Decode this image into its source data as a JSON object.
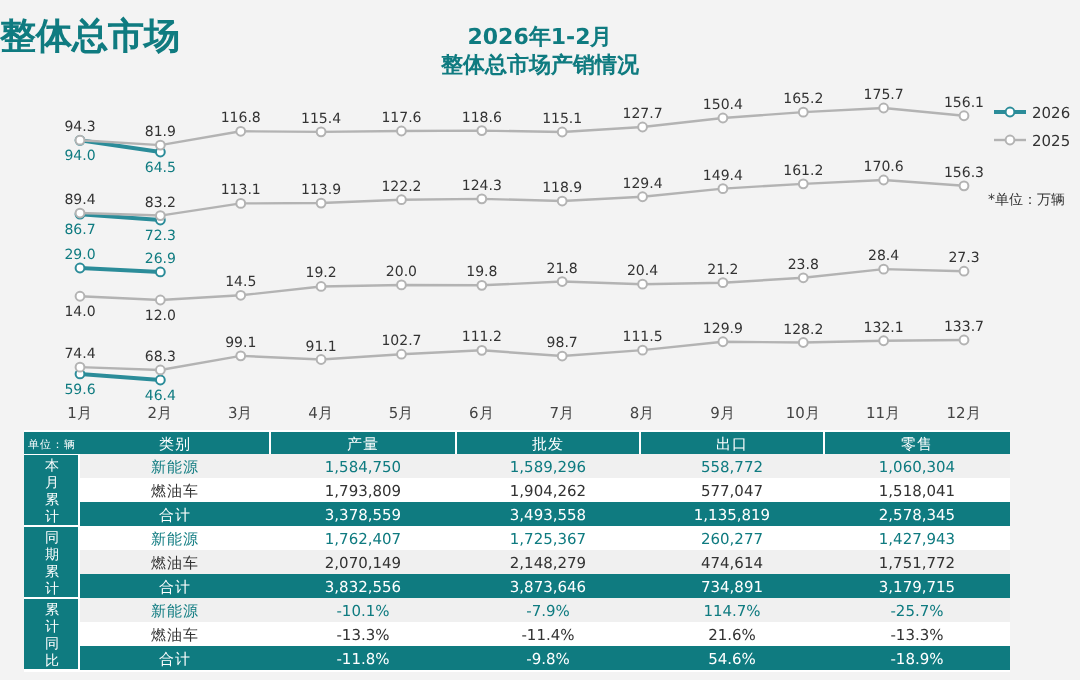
{
  "chart_data": [
    {
      "type": "other",
      "title": "整体总市场"
    },
    {
      "type": "line",
      "title": "2026年1-2月",
      "subtitle": "整体总市场产销情况",
      "tick_labels": false,
      "marker": "circle",
      "legend": "right",
      "series": [
        {
          "name": "2026",
          "color": "#2b8c99",
          "values": [
            94.0,
            64.5,
            null,
            null,
            null,
            null,
            null,
            null,
            null,
            null,
            null,
            null
          ],
          "value_labels": [
            "94.0",
            "64.5",
            null,
            null,
            null,
            null,
            null,
            null,
            null,
            null,
            null,
            null
          ]
        },
        {
          "name": "2025",
          "color": "#b3b3b3",
          "values": [
            94.3,
            81.9,
            116.8,
            115.4,
            117.6,
            118.6,
            115.1,
            127.7,
            150.4,
            165.2,
            175.7,
            156.1
          ],
          "value_labels": [
            "94.3",
            "81.9",
            "116.8",
            "115.4",
            "117.6",
            "118.6",
            "115.1",
            "127.7",
            "150.4",
            "165.2",
            "175.7",
            "156.1"
          ]
        }
      ]
    },
    {
      "type": "line",
      "tick_labels": false,
      "marker": "circle",
      "annotations": [
        "*单位：万辆"
      ],
      "series": [
        {
          "color": "#2b8c99",
          "values": [
            86.7,
            72.3,
            null,
            null,
            null,
            null,
            null,
            null,
            null,
            null,
            null,
            null
          ],
          "value_labels": [
            "86.7",
            "72.3",
            null,
            null,
            null,
            null,
            null,
            null,
            null,
            null,
            null,
            null
          ]
        },
        {
          "color": "#b3b3b3",
          "values": [
            89.4,
            83.2,
            113.1,
            113.9,
            122.2,
            124.3,
            118.9,
            129.4,
            149.4,
            161.2,
            170.6,
            156.3
          ],
          "value_labels": [
            "89.4",
            "83.2",
            "113.1",
            "113.9",
            "122.2",
            "124.3",
            "118.9",
            "129.4",
            "149.4",
            "161.2",
            "170.6",
            "156.3"
          ]
        }
      ]
    },
    {
      "type": "line",
      "tick_labels": false,
      "marker": "circle",
      "series": [
        {
          "color": "#2b8c99",
          "values": [
            29.0,
            26.9,
            null,
            null,
            null,
            null,
            null,
            null,
            null,
            null,
            null,
            null
          ],
          "value_labels": [
            "29.0",
            "26.9",
            null,
            null,
            null,
            null,
            null,
            null,
            null,
            null,
            null,
            null
          ]
        },
        {
          "color": "#b3b3b3",
          "values": [
            14.0,
            12.0,
            14.5,
            19.2,
            20.0,
            19.8,
            21.8,
            20.4,
            21.2,
            23.8,
            28.4,
            27.3
          ],
          "value_labels": [
            "14.0",
            "12.0",
            "14.5",
            "19.2",
            "20.0",
            "19.8",
            "21.8",
            "20.4",
            "21.2",
            "23.8",
            "28.4",
            "27.3"
          ]
        }
      ]
    },
    {
      "type": "line",
      "categories": [
        "1月",
        "2月",
        "3月",
        "4月",
        "5月",
        "6月",
        "7月",
        "8月",
        "9月",
        "10月",
        "11月",
        "12月"
      ],
      "tick_labels": "x",
      "marker": "circle",
      "series": [
        {
          "color": "#2b8c99",
          "values": [
            59.6,
            46.4,
            null,
            null,
            null,
            null,
            null,
            null,
            null,
            null,
            null,
            null
          ],
          "value_labels": [
            "59.6",
            "46.4",
            null,
            null,
            null,
            null,
            null,
            null,
            null,
            null,
            null,
            null
          ]
        },
        {
          "color": "#b3b3b3",
          "values": [
            74.4,
            68.3,
            99.1,
            91.1,
            102.7,
            111.2,
            98.7,
            111.5,
            129.9,
            128.2,
            132.1,
            133.7
          ],
          "value_labels": [
            "74.4",
            "68.3",
            "99.1",
            "91.1",
            "102.7",
            "111.2",
            "98.7",
            "111.5",
            "129.9",
            "128.2",
            "132.1",
            "133.7"
          ]
        }
      ]
    },
    {
      "type": "other",
      "annotations": [
        "单位：辆"
      ],
      "categories": [
        "类别",
        "产量",
        "批发",
        "出口",
        "零售"
      ],
      "y_categories": [
        "本月累计",
        "同期累计",
        "累计同比"
      ],
      "cell_labels": [
        [
          "新能源",
          "1,584,750",
          "1,589,296",
          "558,772",
          "1,060,304"
        ],
        [
          "燃油车",
          "1,793,809",
          "1,904,262",
          "577,047",
          "1,518,041"
        ],
        [
          "合计",
          "3,378,559",
          "3,493,558",
          "1,135,819",
          "2,578,345"
        ],
        [
          "新能源",
          "1,762,407",
          "1,725,367",
          "260,277",
          "1,427,943"
        ],
        [
          "燃油车",
          "2,070,149",
          "2,148,279",
          "474,614",
          "1,751,772"
        ],
        [
          "合计",
          "3,832,556",
          "3,873,646",
          "734,891",
          "3,179,715"
        ],
        [
          "新能源",
          "-10.1%",
          "-7.9%",
          "114.7%",
          "-25.7%"
        ],
        [
          "燃油车",
          "-13.3%",
          "-11.4%",
          "21.6%",
          "-13.3%"
        ],
        [
          "合计",
          "-11.8%",
          "-9.8%",
          "54.6%",
          "-18.9%"
        ]
      ]
    }
  ]
}
